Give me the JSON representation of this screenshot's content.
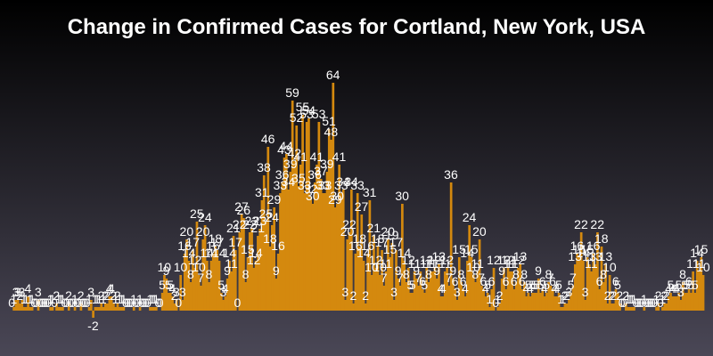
{
  "chart_data": {
    "type": "bar",
    "title": "Change in Confirmed Cases for Cortland, New York, USA",
    "xlabel": "",
    "ylabel": "",
    "ylim": [
      -2,
      64
    ],
    "grid": false,
    "legend": "none",
    "bar_color": "#d4890e",
    "label_color": "#ffffff",
    "values": [
      0,
      1,
      3,
      3,
      2,
      3,
      1,
      1,
      4,
      1,
      1,
      0,
      0,
      3,
      0,
      0,
      0,
      0,
      0,
      1,
      1,
      0,
      2,
      1,
      1,
      1,
      0,
      0,
      2,
      0,
      0,
      1,
      0,
      0,
      2,
      0,
      0,
      0,
      1,
      3,
      -2,
      1,
      1,
      1,
      2,
      1,
      2,
      2,
      4,
      4,
      2,
      1,
      2,
      1,
      1,
      1,
      0,
      0,
      0,
      0,
      1,
      0,
      0,
      1,
      0,
      0,
      0,
      0,
      1,
      1,
      1,
      1,
      0,
      0,
      5,
      10,
      9,
      5,
      5,
      4,
      2,
      3,
      0,
      10,
      3,
      16,
      20,
      14,
      8,
      17,
      12,
      25,
      10,
      7,
      20,
      24,
      14,
      8,
      14,
      16,
      18,
      17,
      14,
      5,
      3,
      4,
      9,
      14,
      11,
      21,
      17,
      0,
      22,
      27,
      26,
      8,
      15,
      22,
      23,
      12,
      14,
      21,
      23,
      31,
      38,
      25,
      46,
      18,
      24,
      29,
      9,
      16,
      33,
      36,
      43,
      44,
      34,
      39,
      59,
      42,
      52,
      35,
      41,
      55,
      33,
      53,
      54,
      32,
      30,
      36,
      41,
      53,
      37,
      33,
      33,
      39,
      51,
      48,
      64,
      29,
      30,
      41,
      33,
      34,
      3,
      20,
      22,
      34,
      2,
      16,
      33,
      18,
      27,
      14,
      2,
      16,
      31,
      10,
      21,
      12,
      18,
      10,
      17,
      7,
      11,
      20,
      15,
      19,
      3,
      17,
      9,
      7,
      30,
      14,
      8,
      12,
      5,
      5,
      11,
      9,
      7,
      11,
      6,
      5,
      12,
      8,
      11,
      11,
      12,
      9,
      13,
      4,
      4,
      11,
      12,
      7,
      36,
      9,
      6,
      3,
      15,
      8,
      6,
      4,
      14,
      24,
      15,
      10,
      8,
      11,
      20,
      7,
      6,
      4,
      5,
      1,
      6,
      12,
      0,
      1,
      2,
      9,
      12,
      6,
      12,
      11,
      11,
      6,
      8,
      12,
      13,
      6,
      8,
      4,
      5,
      4,
      5,
      5,
      5,
      9,
      5,
      6,
      4,
      5,
      8,
      7,
      6,
      4,
      4,
      5,
      1,
      1,
      2,
      2,
      3,
      5,
      7,
      13,
      16,
      15,
      22,
      14,
      3,
      15,
      13,
      11,
      16,
      13,
      22,
      6,
      18,
      8,
      13,
      2,
      10,
      2,
      2,
      6,
      5,
      2,
      0,
      0,
      2,
      1,
      1,
      1,
      1,
      0,
      0,
      0,
      0,
      1,
      0,
      0,
      0,
      0,
      0,
      1,
      2,
      0,
      1,
      2,
      2,
      4,
      5,
      4,
      4,
      4,
      5,
      3,
      8,
      5,
      5,
      6,
      5,
      11,
      5,
      14,
      11,
      15,
      10
    ]
  }
}
